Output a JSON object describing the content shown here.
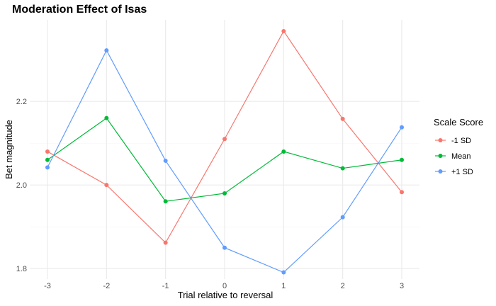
{
  "chart_data": {
    "type": "line",
    "title": "Moderation Effect of Isas",
    "xlabel": "Trial relative to reversal",
    "ylabel": "Bet magnitude",
    "x": [
      -3,
      -2,
      -1,
      0,
      1,
      2,
      3
    ],
    "x_tick_labels": [
      "-3",
      "-2",
      "-1",
      "0",
      "1",
      "2",
      "3"
    ],
    "xlim": [
      -3.3,
      3.3
    ],
    "y_ticks": [
      1.8,
      2.0,
      2.2
    ],
    "y_tick_labels": [
      "1.8",
      "2.0",
      "2.2"
    ],
    "ylim": [
      1.775,
      2.395
    ],
    "grid": true,
    "legend": {
      "title": "Scale Score",
      "position": "right"
    },
    "series": [
      {
        "name": "-1 SD",
        "color": "#F8766D",
        "values": [
          2.08,
          2.0,
          1.862,
          2.11,
          2.368,
          2.158,
          1.983
        ]
      },
      {
        "name": "Mean",
        "color": "#00BA38",
        "values": [
          2.06,
          2.16,
          1.961,
          1.98,
          2.08,
          2.04,
          2.06
        ]
      },
      {
        "name": "+1 SD",
        "color": "#619CFF",
        "values": [
          2.042,
          2.322,
          2.058,
          1.85,
          1.791,
          1.923,
          2.138
        ]
      }
    ]
  }
}
